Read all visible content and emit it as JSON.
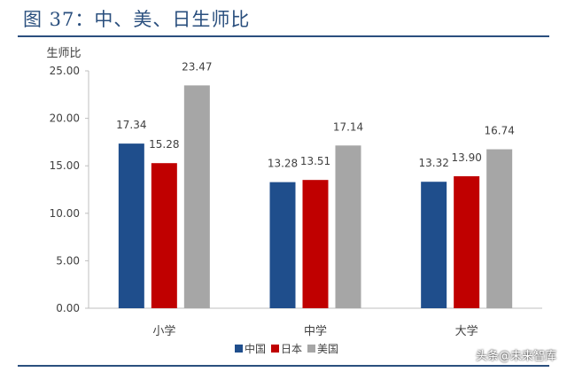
{
  "figure": {
    "title": "图 37：中、美、日生师比",
    "watermark": "头条@未来智库"
  },
  "chart_data": {
    "type": "bar",
    "title": "图 37：中、美、日生师比",
    "ylabel": "生师比",
    "xlabel": "",
    "categories": [
      "小学",
      "中学",
      "大学"
    ],
    "series": [
      {
        "name": "中国",
        "color": "#1f4e8c",
        "values": [
          17.34,
          13.28,
          13.32
        ],
        "labels": [
          "17.34",
          "13.28",
          "13.32"
        ]
      },
      {
        "name": "日本",
        "color": "#c00000",
        "values": [
          15.28,
          13.51,
          13.9
        ],
        "labels": [
          "15.28",
          "13.51",
          "13.90"
        ]
      },
      {
        "name": "美国",
        "color": "#a6a6a6",
        "values": [
          23.47,
          17.14,
          16.74
        ],
        "labels": [
          "23.47",
          "17.14",
          "16.74"
        ]
      }
    ],
    "ylim": [
      0,
      25
    ],
    "yticks": [
      0,
      5,
      10,
      15,
      20,
      25
    ],
    "ytick_labels": [
      "0.00",
      "5.00",
      "10.00",
      "15.00",
      "20.00",
      "25.00"
    ],
    "grid": false,
    "legend_position": "bottom"
  }
}
